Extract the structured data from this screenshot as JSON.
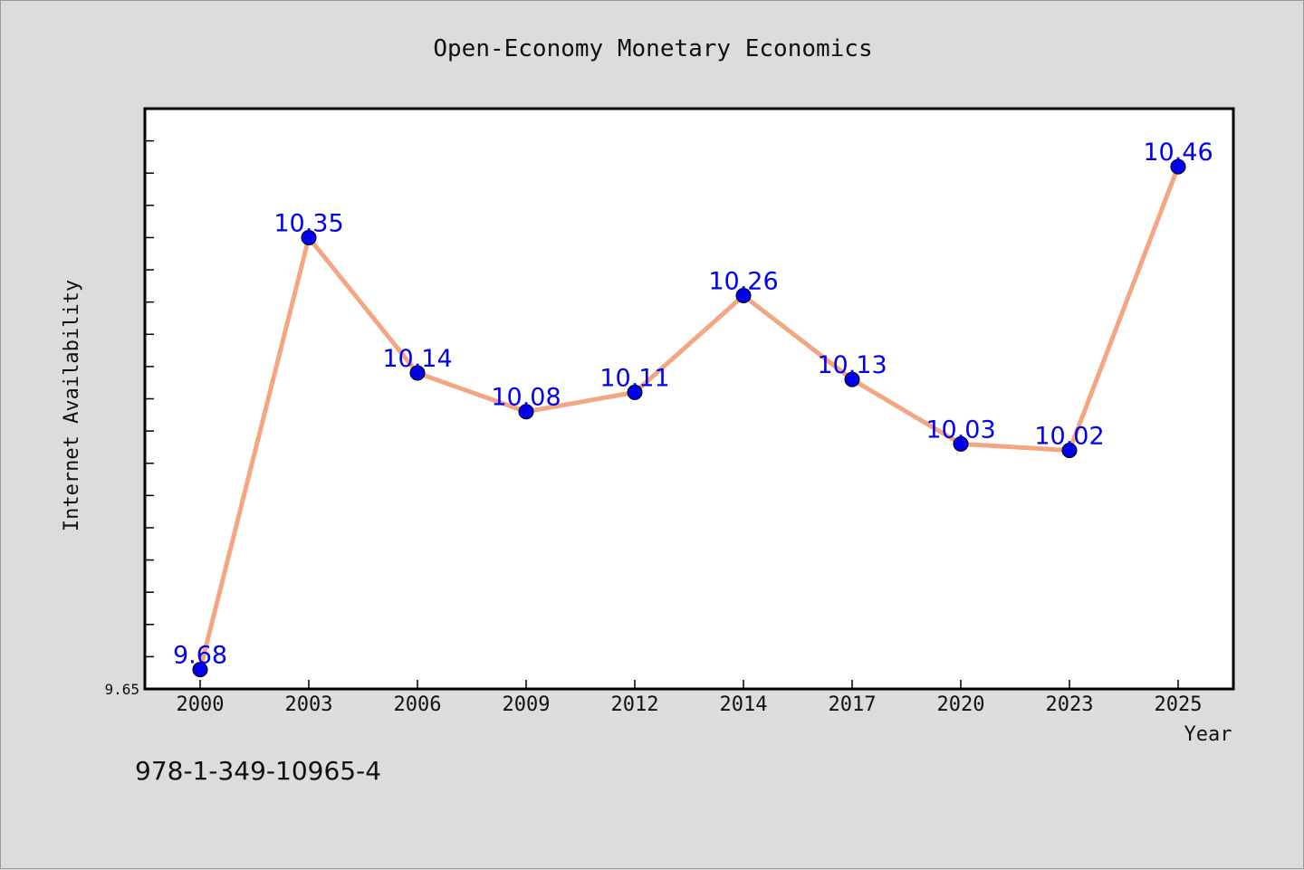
{
  "chart_data": {
    "type": "line",
    "title": "Open-Economy Monetary Economics",
    "xlabel": "Year",
    "ylabel": "Internet Availability",
    "categories": [
      "2000",
      "2003",
      "2006",
      "2009",
      "2012",
      "2014",
      "2017",
      "2020",
      "2023",
      "2025"
    ],
    "series": [
      {
        "values": [
          9.68,
          10.35,
          10.14,
          10.08,
          10.11,
          10.26,
          10.13,
          10.03,
          10.02,
          10.46
        ],
        "labels": [
          "9.68",
          "10.35",
          "10.14",
          "10.08",
          "10.11",
          "10.26",
          "10.13",
          "10.03",
          "10.02",
          "10.46"
        ],
        "line_color": "#f4a582",
        "marker_color": "#0000ee",
        "label_color": "#0000ee"
      }
    ],
    "ylim": [
      9.65,
      10.55
    ],
    "yticks_labeled": [
      "9.65"
    ],
    "ytick_minor_step": 0.05,
    "grid": false,
    "legend": "none"
  },
  "footer": {
    "isbn": "978-1-349-10965-4"
  },
  "colors": {
    "background": "#dcdcdc",
    "plot_background": "#ffffff",
    "axis": "#000000"
  }
}
